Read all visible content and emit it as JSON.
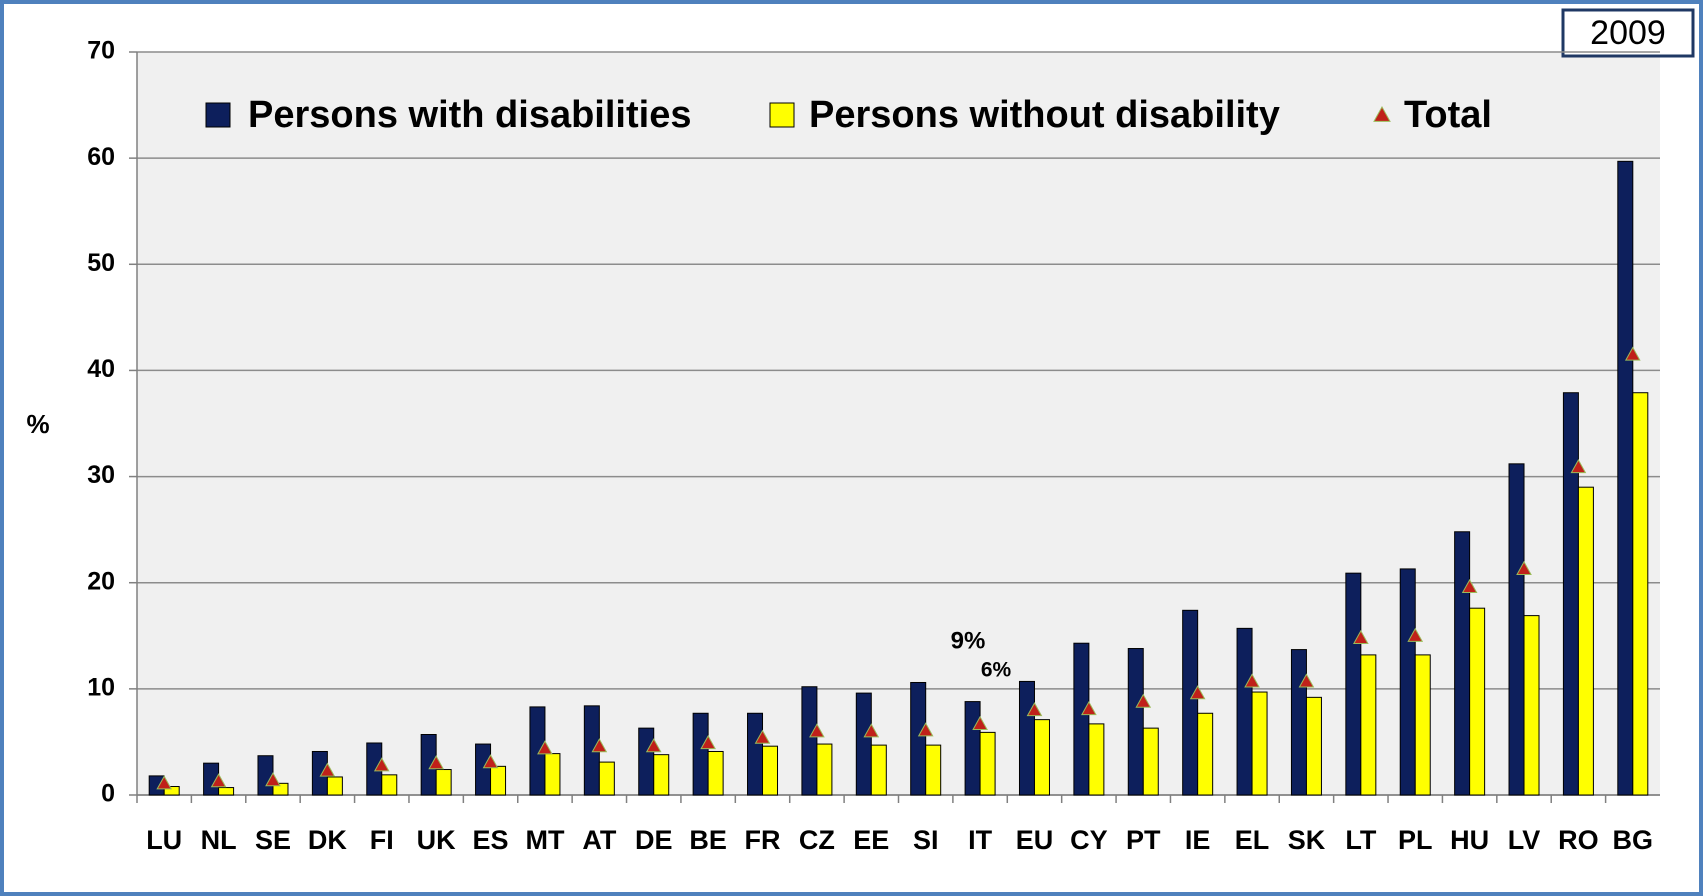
{
  "chart_data": {
    "type": "bar",
    "badge": "2009",
    "ylabel": "%",
    "categories": [
      "LU",
      "NL",
      "SE",
      "DK",
      "FI",
      "UK",
      "ES",
      "MT",
      "AT",
      "DE",
      "BE",
      "FR",
      "CZ",
      "EE",
      "SI",
      "IT",
      "EU",
      "CY",
      "PT",
      "IE",
      "EL",
      "SK",
      "LT",
      "PL",
      "HU",
      "LV",
      "RO",
      "BG"
    ],
    "series": [
      {
        "name": "Persons with disabilities",
        "color": "#0d1f5c",
        "values": [
          1.8,
          3.0,
          3.7,
          4.1,
          4.9,
          5.7,
          4.8,
          8.3,
          8.4,
          6.3,
          7.7,
          7.7,
          10.2,
          9.6,
          10.6,
          8.8,
          10.7,
          14.3,
          13.8,
          17.4,
          15.7,
          13.7,
          20.9,
          21.3,
          24.8,
          31.2,
          37.9,
          59.7
        ]
      },
      {
        "name": "Persons without disability",
        "color": "#ffff00",
        "values": [
          0.8,
          0.7,
          1.1,
          1.7,
          1.9,
          2.4,
          2.7,
          3.9,
          3.1,
          3.8,
          4.1,
          4.6,
          4.8,
          4.7,
          4.7,
          5.9,
          7.1,
          6.7,
          6.3,
          7.7,
          9.7,
          9.2,
          13.2,
          13.2,
          17.6,
          16.9,
          29.0,
          37.9
        ]
      },
      {
        "name": "Total",
        "color": "#c0201a",
        "marker": "triangle",
        "values": [
          1.1,
          1.3,
          1.4,
          2.3,
          2.8,
          3.0,
          3.1,
          4.4,
          4.6,
          4.6,
          4.9,
          5.4,
          6.0,
          6.0,
          6.1,
          6.7,
          8.0,
          8.1,
          8.8,
          9.6,
          10.7,
          10.7,
          14.8,
          15.0,
          19.6,
          21.3,
          30.9,
          41.5
        ]
      }
    ],
    "annotations": [
      "9%",
      "6%"
    ],
    "ylim": [
      0,
      70
    ],
    "yticks": [
      0,
      10,
      20,
      30,
      40,
      50,
      60,
      70
    ],
    "grid": true
  }
}
